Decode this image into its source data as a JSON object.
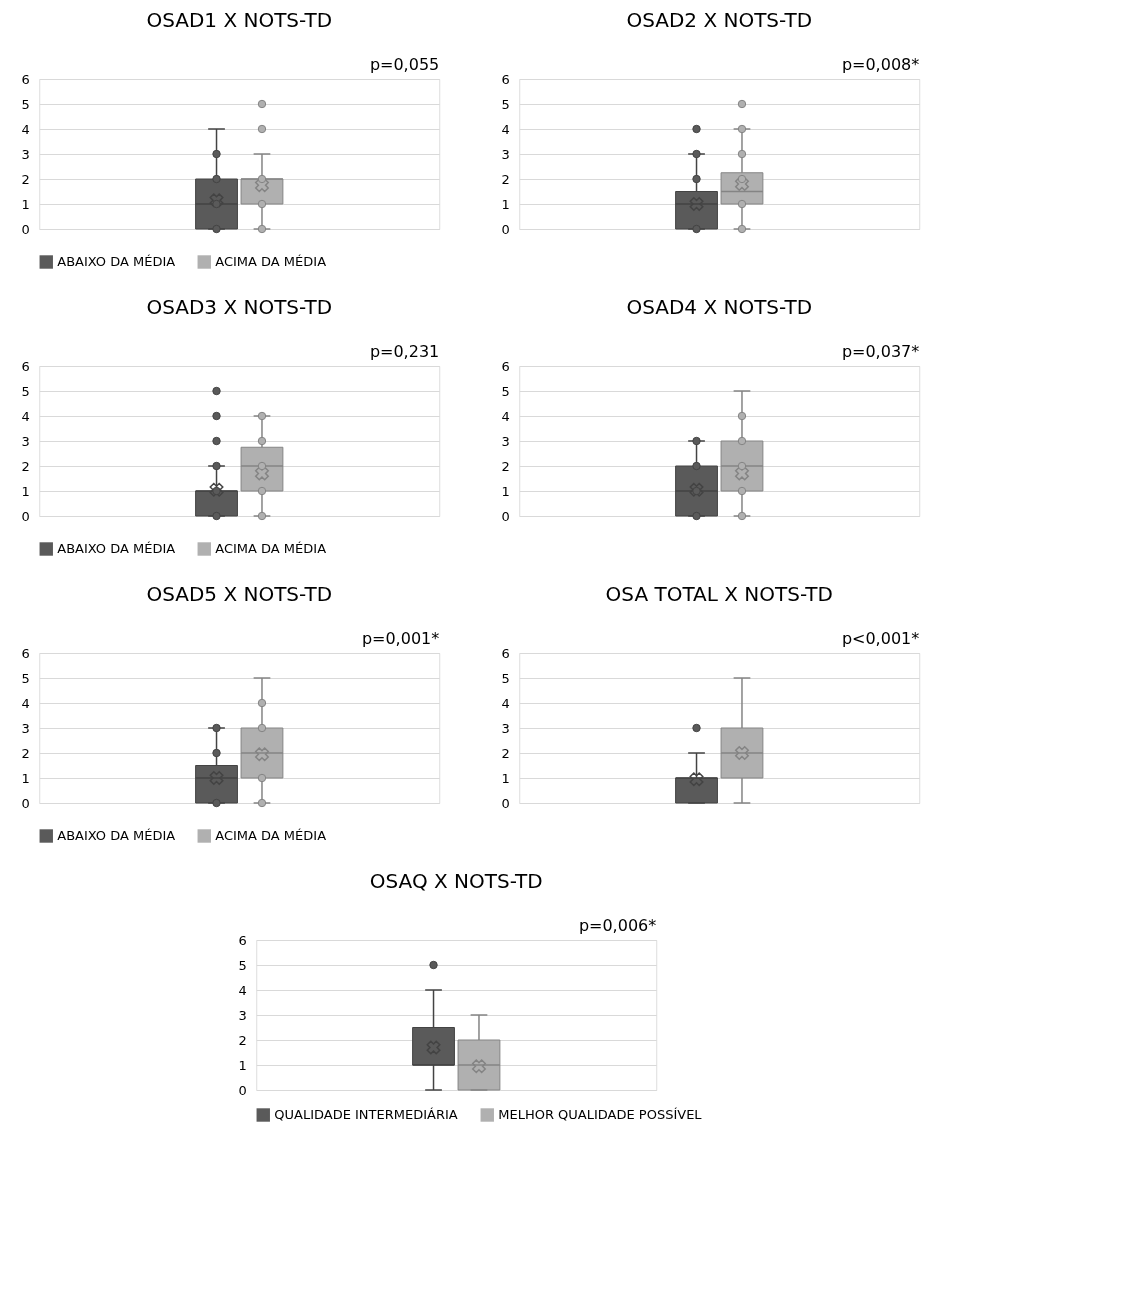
{
  "chart_data": [
    {
      "type": "box",
      "title": "OSAD1 X NOTS-TD",
      "categories": [
        null
      ],
      "ylim": [
        0,
        6
      ],
      "yticks": [
        0,
        1,
        2,
        3,
        4,
        5,
        6
      ],
      "grid": "y",
      "legend": "bottom",
      "annotations": [
        "p=0,055"
      ],
      "marker": "circle",
      "series": [
        {
          "name": "ABAIXO DA MÉDIA",
          "color": "#5a5a5a",
          "boxes": [
            {
              "low": 0,
              "q1": 0,
              "median": 1,
              "q3": 2,
              "high": 4,
              "mean": 1.15,
              "outliers": [
                0,
                1,
                2,
                3
              ]
            }
          ]
        },
        {
          "name": "ACIMA DA MÉDIA",
          "color": "#b0b0b0",
          "boxes": [
            {
              "low": 0,
              "q1": 1,
              "median": 2,
              "q3": 2,
              "high": 3,
              "mean": 1.75,
              "outliers": [
                0,
                1,
                2,
                4,
                5
              ]
            }
          ]
        }
      ]
    },
    {
      "type": "box",
      "title": "OSAD2 X NOTS-TD",
      "categories": [
        null
      ],
      "ylim": [
        0,
        6
      ],
      "yticks": [
        0,
        1,
        2,
        3,
        4,
        5,
        6
      ],
      "grid": "y",
      "legend": "bottom",
      "annotations": [
        "p=0,008*"
      ],
      "marker": "circle",
      "series": [
        {
          "name": "ABAIXO DA MÉDIA",
          "color": "#5a5a5a",
          "boxes": [
            {
              "low": 0,
              "q1": 0,
              "median": 1,
              "q3": 1.5,
              "high": 3,
              "mean": 1.0,
              "outliers": [
                0,
                2,
                3,
                4
              ]
            }
          ]
        },
        {
          "name": "ACIMA DA MÉDIA",
          "color": "#b0b0b0",
          "boxes": [
            {
              "low": 0,
              "q1": 1,
              "median": 1.5,
              "q3": 2.25,
              "high": 4,
              "mean": 1.8,
              "outliers": [
                0,
                1,
                2,
                3,
                4,
                5
              ]
            }
          ]
        }
      ]
    },
    {
      "type": "box",
      "title": "OSAD3 X NOTS-TD",
      "categories": [
        null
      ],
      "ylim": [
        0,
        6
      ],
      "yticks": [
        0,
        1,
        2,
        3,
        4,
        5,
        6
      ],
      "grid": "y",
      "legend": "bottom",
      "annotations": [
        "p=0,231"
      ],
      "marker": "circle",
      "series": [
        {
          "name": "ABAIXO DA MÉDIA",
          "color": "#5a5a5a",
          "boxes": [
            {
              "low": 0,
              "q1": 0,
              "median": 1,
              "q3": 1,
              "high": 2,
              "mean": 1.05,
              "outliers": [
                0,
                1,
                2,
                3,
                4,
                5
              ]
            }
          ]
        },
        {
          "name": "ACIMA DA MÉDIA",
          "color": "#b0b0b0",
          "boxes": [
            {
              "low": 0,
              "q1": 1,
              "median": 2,
              "q3": 2.75,
              "high": 4,
              "mean": 1.7,
              "outliers": [
                0,
                1,
                2,
                3,
                4
              ]
            }
          ]
        }
      ]
    },
    {
      "type": "box",
      "title": "OSAD4 X NOTS-TD",
      "categories": [
        null
      ],
      "ylim": [
        0,
        6
      ],
      "yticks": [
        0,
        1,
        2,
        3,
        4,
        5,
        6
      ],
      "grid": "y",
      "legend": "bottom",
      "annotations": [
        "p=0,037*"
      ],
      "marker": "circle",
      "series": [
        {
          "name": "ABAIXO DA MÉDIA",
          "color": "#5a5a5a",
          "boxes": [
            {
              "low": 0,
              "q1": 0,
              "median": 1,
              "q3": 2,
              "high": 3,
              "mean": 1.05,
              "outliers": [
                0,
                1,
                2,
                3
              ]
            }
          ]
        },
        {
          "name": "ACIMA DA MÉDIA",
          "color": "#b0b0b0",
          "boxes": [
            {
              "low": 0,
              "q1": 1,
              "median": 2,
              "q3": 3,
              "high": 5,
              "mean": 1.7,
              "outliers": [
                0,
                1,
                2,
                3,
                4
              ]
            }
          ]
        }
      ]
    },
    {
      "type": "box",
      "title": "OSAD5 X NOTS-TD",
      "categories": [
        null
      ],
      "ylim": [
        0,
        6
      ],
      "yticks": [
        0,
        1,
        2,
        3,
        4,
        5,
        6
      ],
      "grid": "y",
      "legend": "bottom",
      "annotations": [
        "p=0,001*"
      ],
      "marker": "circle",
      "series": [
        {
          "name": "ABAIXO DA MÉDIA",
          "color": "#5a5a5a",
          "boxes": [
            {
              "low": 0,
              "q1": 0,
              "median": 1,
              "q3": 1.5,
              "high": 3,
              "mean": 1.0,
              "outliers": [
                0,
                2,
                3
              ]
            }
          ]
        },
        {
          "name": "ACIMA DA MÉDIA",
          "color": "#b0b0b0",
          "boxes": [
            {
              "low": 0,
              "q1": 1,
              "median": 2,
              "q3": 3,
              "high": 5,
              "mean": 1.95,
              "outliers": [
                0,
                1,
                3,
                4
              ]
            }
          ]
        }
      ]
    },
    {
      "type": "box",
      "title": "OSA TOTAL X NOTS-TD",
      "categories": [
        null
      ],
      "ylim": [
        0,
        6
      ],
      "yticks": [
        0,
        1,
        2,
        3,
        4,
        5,
        6
      ],
      "grid": "y",
      "legend": "bottom",
      "annotations": [
        "p<0,001*"
      ],
      "marker": "circle",
      "series": [
        {
          "name": "ABAIXO DA MÉDIA",
          "color": "#5a5a5a",
          "boxes": [
            {
              "low": 0,
              "q1": 0,
              "median": 1,
              "q3": 1,
              "high": 2,
              "mean": 0.95,
              "outliers": [
                3
              ]
            }
          ]
        },
        {
          "name": "ACIMA DA MÉDIA",
          "color": "#b0b0b0",
          "boxes": [
            {
              "low": 0,
              "q1": 1,
              "median": 2,
              "q3": 3,
              "high": 5,
              "mean": 2.0
            }
          ]
        }
      ]
    },
    {
      "type": "box",
      "title": "OSAQ X NOTS-TD",
      "categories": [
        null
      ],
      "ylim": [
        0,
        6
      ],
      "yticks": [
        0,
        1,
        2,
        3,
        4,
        5,
        6
      ],
      "grid": "y",
      "legend": "bottom",
      "annotations": [
        "p=0,006*"
      ],
      "marker": "circle",
      "series": [
        {
          "name": "QUALIDADE INTERMEDIÁRIA",
          "color": "#5a5a5a",
          "boxes": [
            {
              "low": 0,
              "q1": 1,
              "median": 1,
              "q3": 2.5,
              "high": 4,
              "mean": 1.7,
              "outliers": [
                5
              ]
            }
          ]
        },
        {
          "name": "MELHOR QUALIDADE POSSÍVEL",
          "color": "#b0b0b0",
          "boxes": [
            {
              "low": 0,
              "q1": 0,
              "median": 1,
              "q3": 2,
              "high": 3,
              "mean": 0.95
            }
          ]
        }
      ]
    }
  ]
}
